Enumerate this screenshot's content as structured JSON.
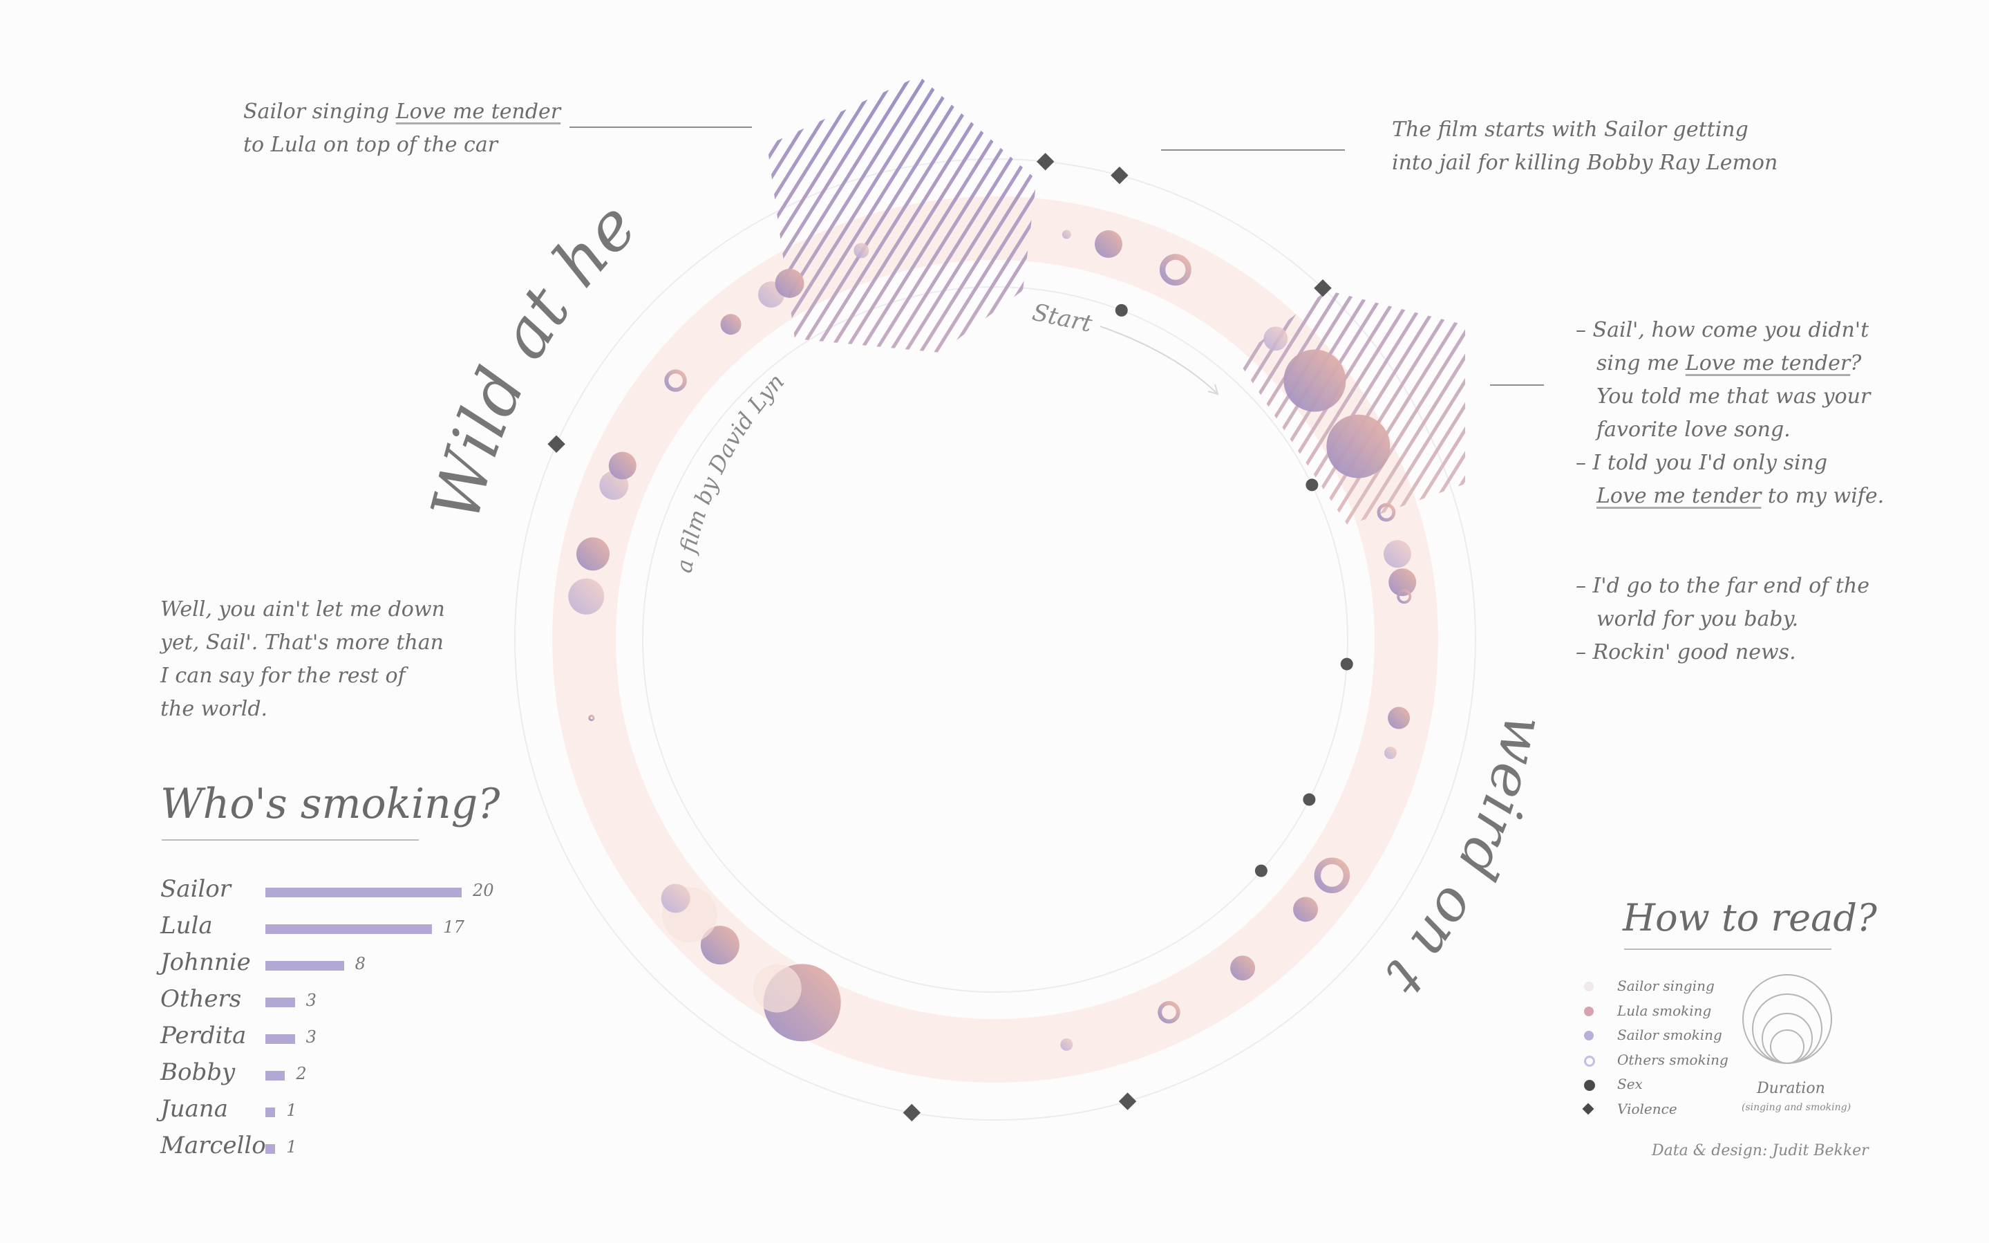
{
  "title": "Wild at heart",
  "subtitle": "a film by David Lynch",
  "tagline": "weird on top",
  "start_label": "Start",
  "quotes": {
    "q1": {
      "line1_pre": "Sailor singing ",
      "line1_u": "Love me tender",
      "line2": "to Lula on top of the car"
    },
    "q2": {
      "line1": "The film starts with Sailor getting",
      "line2": "into jail for killing Bobby Ray Lemon"
    },
    "q3": {
      "l1": "– Sail', how come you didn't",
      "l2_pre": "sing me ",
      "l2_u": "Love me tender",
      "l2_post": "?",
      "l3": "You told me that was your",
      "l4": "favorite love song.",
      "l5": "– I told you I'd only sing",
      "l6_u": "Love me tender",
      "l6_post": " to my wife."
    },
    "q4": {
      "l1": "– I'd go to the far end of the",
      "l2": "world for you baby.",
      "l3": "– Rockin' good news."
    },
    "q5": {
      "l1": "Well, you ain't let me down",
      "l2": "yet, Sail'. That's more than",
      "l3": "I can say for the rest of",
      "l4": "the world."
    }
  },
  "smoking": {
    "title": "Who's smoking?",
    "items": [
      {
        "name": "Sailor",
        "value": 20
      },
      {
        "name": "Lula",
        "value": 17
      },
      {
        "name": "Johnnie",
        "value": 8
      },
      {
        "name": "Others",
        "value": 3
      },
      {
        "name": "Perdita",
        "value": 3
      },
      {
        "name": "Bobby",
        "value": 2
      },
      {
        "name": "Juana",
        "value": 1
      },
      {
        "name": "Marcello",
        "value": 1
      }
    ]
  },
  "legend": {
    "title": "How to read?",
    "items": [
      "Sailor singing",
      "Lula smoking",
      "Sailor smoking",
      "Others smoking",
      "Sex",
      "Violence"
    ],
    "duration_label": "Duration",
    "duration_sub": "(singing and smoking)"
  },
  "credit": "Data & design: Judit Bekker",
  "colors": {
    "band": "#fbeeea",
    "purple": "#9b8fc6",
    "peach": "#e9b3a4",
    "dark": "#555555"
  },
  "chart_data": {
    "type": "radial-timeline",
    "smoking_counts": {
      "categories": [
        "Sailor",
        "Lula",
        "Johnnie",
        "Others",
        "Perdita",
        "Bobby",
        "Juana",
        "Marcello"
      ],
      "values": [
        20,
        17,
        8,
        3,
        3,
        2,
        1,
        1
      ]
    },
    "events": [
      {
        "angle": 10,
        "type": "sailor-smoking",
        "size": 13
      },
      {
        "angle": 16,
        "type": "lula-smoking",
        "size": 40
      },
      {
        "angle": 26,
        "type": "others-smoking",
        "size": 48
      },
      {
        "angle": 43,
        "type": "sailor-smoking",
        "size": 35
      },
      {
        "angle": 51,
        "type": "lula-smoking",
        "size": 90
      },
      {
        "angle": 62,
        "type": "lula-smoking",
        "size": 92
      },
      {
        "angle": 72,
        "type": "others-smoking",
        "size": 28
      },
      {
        "angle": 78,
        "type": "sailor-smoking",
        "size": 40
      },
      {
        "angle": 82,
        "type": "lula-smoking",
        "size": 40
      },
      {
        "angle": 84,
        "type": "others-smoking",
        "size": 22
      },
      {
        "angle": 101,
        "type": "lula-smoking",
        "size": 32
      },
      {
        "angle": 106,
        "type": "sailor-smoking",
        "size": 18
      },
      {
        "angle": 125,
        "type": "others-smoking",
        "size": 54
      },
      {
        "angle": 131,
        "type": "lula-smoking",
        "size": 36
      },
      {
        "angle": 143,
        "type": "lula-smoking",
        "size": 36
      },
      {
        "angle": 155,
        "type": "others-smoking",
        "size": 34
      },
      {
        "angle": 170,
        "type": "sailor-smoking",
        "size": 18
      },
      {
        "angle": 208,
        "type": "lula-smoking",
        "size": 112
      },
      {
        "angle": 212,
        "type": "sailor-singing",
        "size": 70
      },
      {
        "angle": 222,
        "type": "lula-smoking",
        "size": 56
      },
      {
        "angle": 228,
        "type": "sailor-singing",
        "size": 80
      },
      {
        "angle": 231,
        "type": "sailor-smoking",
        "size": 42
      },
      {
        "angle": 259,
        "type": "others-smoking",
        "size": 8
      },
      {
        "angle": 276,
        "type": "sailor-smoking",
        "size": 52
      },
      {
        "angle": 282,
        "type": "lula-smoking",
        "size": 48
      },
      {
        "angle": 292,
        "type": "sailor-smoking",
        "size": 42
      },
      {
        "angle": 295,
        "type": "lula-smoking",
        "size": 40
      },
      {
        "angle": 309,
        "type": "others-smoking",
        "size": 34
      },
      {
        "angle": 320,
        "type": "lula-smoking",
        "size": 30
      },
      {
        "angle": 327,
        "type": "sailor-smoking",
        "size": 38
      },
      {
        "angle": 330,
        "type": "lula-smoking",
        "size": 42
      },
      {
        "angle": 341,
        "type": "sailor-smoking",
        "size": 22
      }
    ],
    "sex": [
      21,
      64,
      94,
      117,
      131
    ],
    "violence": [
      6,
      15,
      43,
      164,
      190,
      294
    ]
  }
}
